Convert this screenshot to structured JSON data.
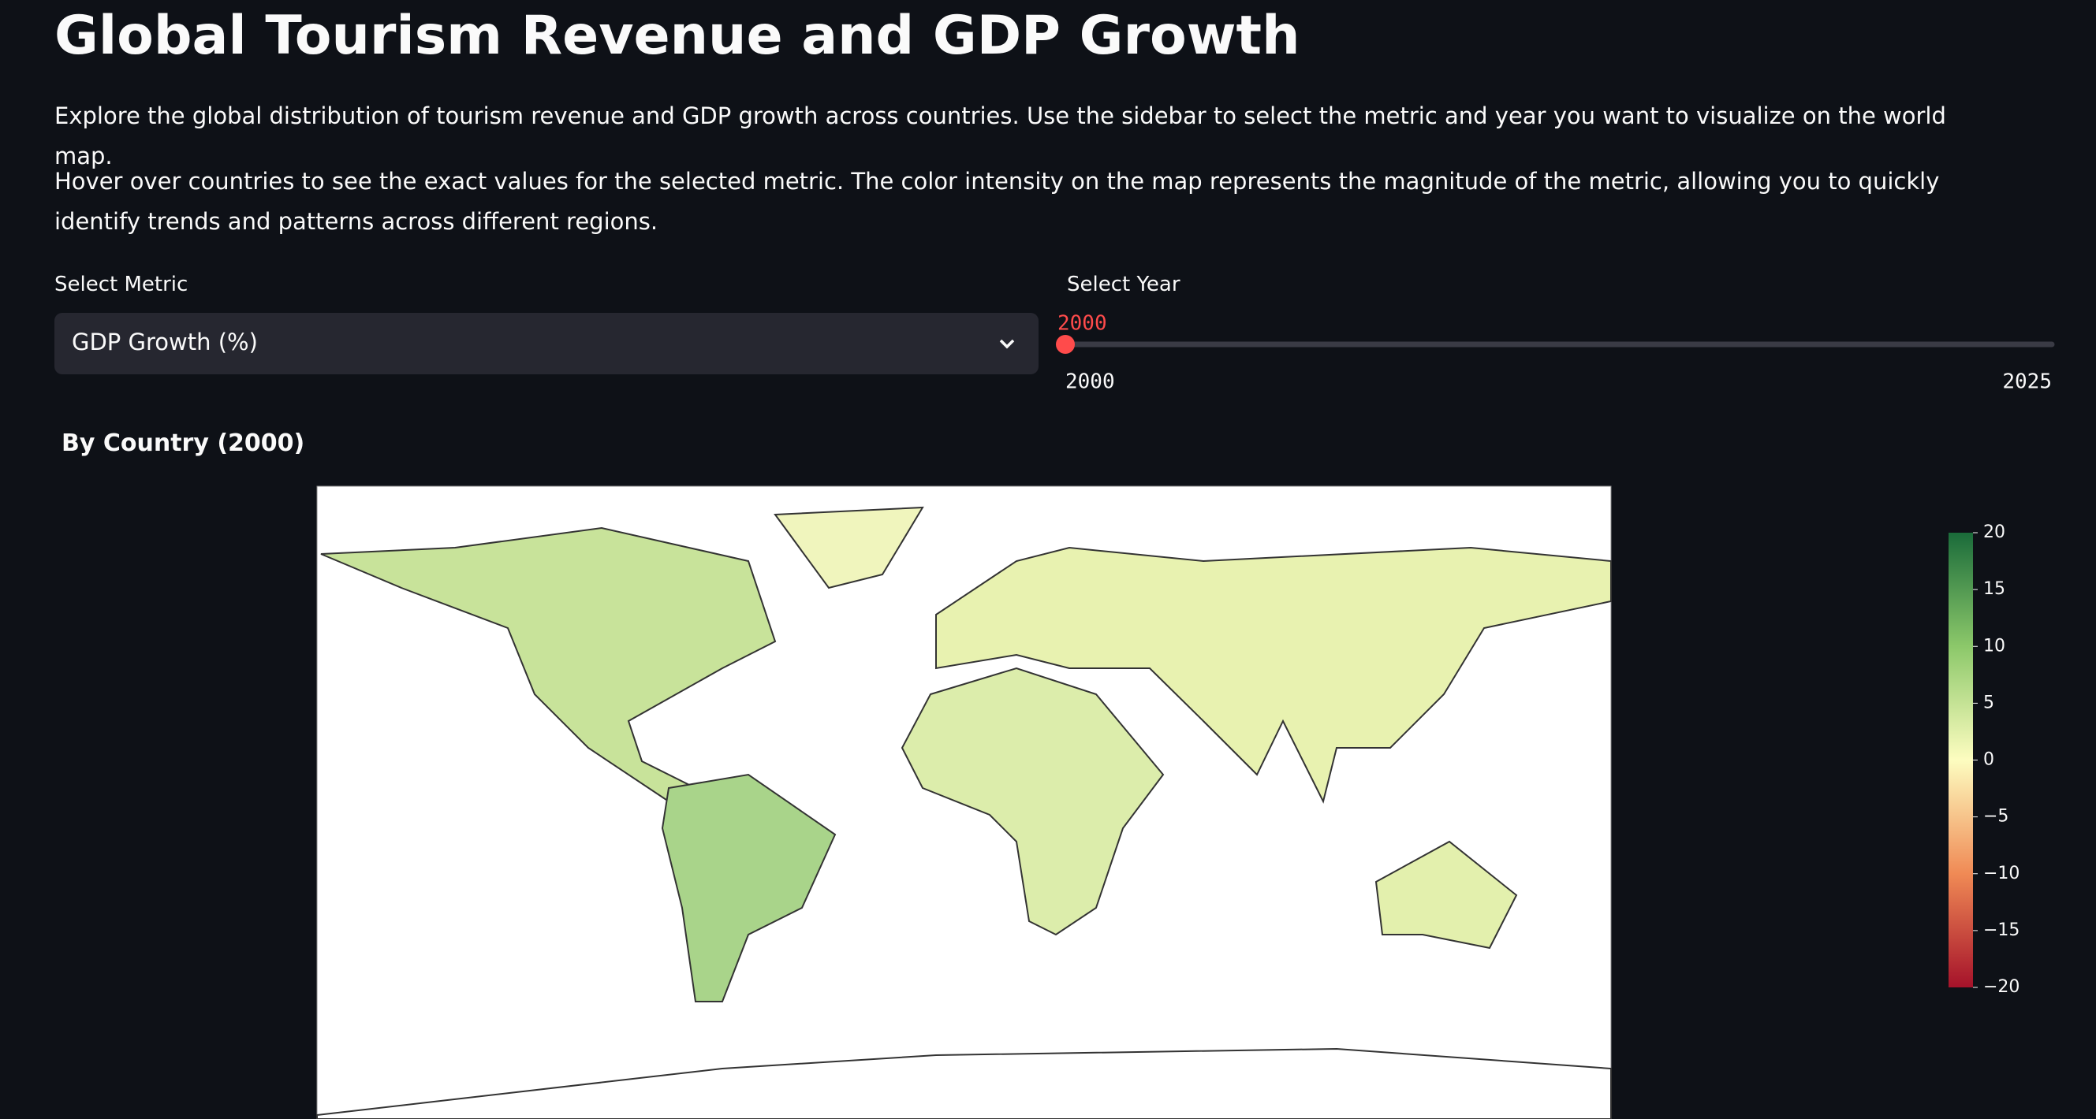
{
  "header": {
    "title": "Global Tourism Revenue and GDP Growth"
  },
  "intro": [
    "Explore the global distribution of tourism revenue and GDP growth across countries. Use the sidebar to select the metric and year you want to visualize on the world map.",
    "Hover over countries to see the exact values for the selected metric. The color intensity on the map represents the magnitude of the metric, allowing you to quickly identify trends and patterns across different regions."
  ],
  "metric_select": {
    "label": "Select Metric",
    "value": "GDP Growth (%)"
  },
  "year_slider": {
    "label": "Select Year",
    "value": 2000,
    "min": 2000,
    "max": 2025
  },
  "subheader": "By Country (2000)",
  "colorbar": {
    "range": [
      -20,
      20
    ],
    "ticks": [
      {
        "value": 20,
        "label": "20"
      },
      {
        "value": 15,
        "label": "15"
      },
      {
        "value": 10,
        "label": "10"
      },
      {
        "value": 5,
        "label": "5"
      },
      {
        "value": 0,
        "label": "0"
      },
      {
        "value": -5,
        "label": "−5"
      },
      {
        "value": -10,
        "label": "−10"
      },
      {
        "value": -15,
        "label": "−15"
      },
      {
        "value": -20,
        "label": "−20"
      }
    ]
  }
}
